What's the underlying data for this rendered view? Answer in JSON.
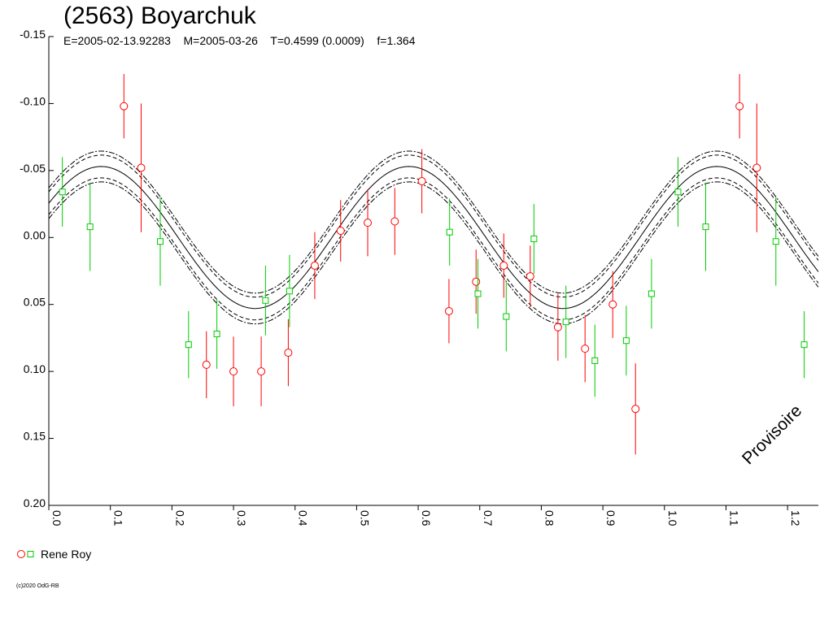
{
  "chart_data": {
    "type": "scatter",
    "title": "(2563) Boyarchuk",
    "subtitle": "E=2005-02-13.92283    M=2005-03-26    T=0.4599 (0.0009)    f=1.364",
    "xlabel": "",
    "ylabel": "",
    "xlim": [
      0.0,
      1.25
    ],
    "ylim": [
      -0.15,
      0.2
    ],
    "y_inverted": true,
    "x_ticks": [
      "0.0",
      "0.1",
      "0.2",
      "0.3",
      "0.4",
      "0.5",
      "0.6",
      "0.7",
      "0.8",
      "0.9",
      "1.0",
      "1.1",
      "1.2"
    ],
    "y_ticks": [
      "-0.15",
      "-0.10",
      "-0.05",
      "0.00",
      "0.05",
      "0.10",
      "0.15",
      "0.20"
    ],
    "y_tick_values": [
      -0.15,
      -0.1,
      -0.05,
      0.0,
      0.05,
      0.1,
      0.15,
      0.2
    ],
    "fit": {
      "mean": 0.026,
      "amplitude": 0.053,
      "peak_phase": 0.085,
      "band_inner": 0.0085,
      "band_outer": 0.0115
    },
    "series": [
      {
        "name": "Rene Roy",
        "marker": "circle",
        "color": "#ff0000",
        "points": [
          {
            "x": 0.122,
            "y": -0.098,
            "err": 0.024
          },
          {
            "x": 0.15,
            "y": -0.052,
            "err": 0.048
          },
          {
            "x": 0.256,
            "y": 0.095,
            "err": 0.025
          },
          {
            "x": 0.3,
            "y": 0.1,
            "err": 0.026
          },
          {
            "x": 0.345,
            "y": 0.1,
            "err": 0.026
          },
          {
            "x": 0.389,
            "y": 0.086,
            "err": 0.025
          },
          {
            "x": 0.432,
            "y": 0.021,
            "err": 0.025
          },
          {
            "x": 0.474,
            "y": -0.005,
            "err": 0.023
          },
          {
            "x": 0.518,
            "y": -0.011,
            "err": 0.025
          },
          {
            "x": 0.562,
            "y": -0.012,
            "err": 0.025
          },
          {
            "x": 0.606,
            "y": -0.042,
            "err": 0.024
          },
          {
            "x": 0.65,
            "y": 0.055,
            "err": 0.024
          },
          {
            "x": 0.694,
            "y": 0.033,
            "err": 0.024
          },
          {
            "x": 0.739,
            "y": 0.021,
            "err": 0.024
          },
          {
            "x": 0.782,
            "y": 0.029,
            "err": 0.023
          },
          {
            "x": 0.827,
            "y": 0.067,
            "err": 0.025
          },
          {
            "x": 0.871,
            "y": 0.083,
            "err": 0.025
          },
          {
            "x": 0.916,
            "y": 0.05,
            "err": 0.025
          },
          {
            "x": 0.953,
            "y": 0.128,
            "err": 0.034
          },
          {
            "x": 1.122,
            "y": -0.098,
            "err": 0.024
          },
          {
            "x": 1.15,
            "y": -0.052,
            "err": 0.048
          }
        ]
      },
      {
        "name": "",
        "marker": "square",
        "color": "#00cc00",
        "points": [
          {
            "x": 0.022,
            "y": -0.034,
            "err": 0.026
          },
          {
            "x": 0.067,
            "y": -0.008,
            "err": 0.033
          },
          {
            "x": 0.181,
            "y": 0.003,
            "err": 0.033
          },
          {
            "x": 0.227,
            "y": 0.08,
            "err": 0.025
          },
          {
            "x": 0.273,
            "y": 0.072,
            "err": 0.026
          },
          {
            "x": 0.352,
            "y": 0.047,
            "err": 0.026
          },
          {
            "x": 0.391,
            "y": 0.04,
            "err": 0.027
          },
          {
            "x": 0.651,
            "y": -0.004,
            "err": 0.025
          },
          {
            "x": 0.697,
            "y": 0.042,
            "err": 0.026
          },
          {
            "x": 0.743,
            "y": 0.059,
            "err": 0.026
          },
          {
            "x": 0.788,
            "y": 0.001,
            "err": 0.026
          },
          {
            "x": 0.84,
            "y": 0.063,
            "err": 0.027
          },
          {
            "x": 0.887,
            "y": 0.092,
            "err": 0.027
          },
          {
            "x": 0.938,
            "y": 0.077,
            "err": 0.026
          },
          {
            "x": 0.979,
            "y": 0.042,
            "err": 0.026
          },
          {
            "x": 1.022,
            "y": -0.034,
            "err": 0.026
          },
          {
            "x": 1.067,
            "y": -0.008,
            "err": 0.033
          },
          {
            "x": 1.181,
            "y": 0.003,
            "err": 0.033
          },
          {
            "x": 1.227,
            "y": 0.08,
            "err": 0.025
          }
        ]
      }
    ],
    "legend": {
      "position": "bottom-left",
      "label": "Rene Roy"
    },
    "annotations": [
      "Provisoire"
    ]
  },
  "copyright": "(c)2020 OdG-RB"
}
